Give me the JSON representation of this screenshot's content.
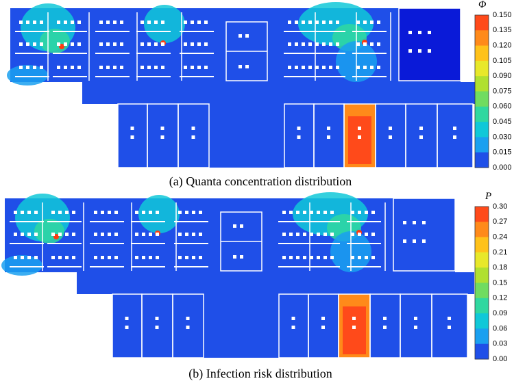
{
  "panels": [
    {
      "caption": "(a) Quanta concentration distribution",
      "colorbar": {
        "title": "Φ",
        "ticks": [
          "0.150",
          "0.135",
          "0.120",
          "0.105",
          "0.090",
          "0.075",
          "0.060",
          "0.045",
          "0.030",
          "0.015",
          "0.000"
        ],
        "colors": [
          "#ff4a1a",
          "#ff8a1a",
          "#ffc21a",
          "#e8e82a",
          "#b0e030",
          "#70dc60",
          "#30d8a0",
          "#10c8d8",
          "#1aa0f0",
          "#1f4fe8"
        ]
      }
    },
    {
      "caption": "(b) Infection risk distribution",
      "colorbar": {
        "title": "P",
        "ticks": [
          "0.30",
          "0.27",
          "0.24",
          "0.21",
          "0.18",
          "0.15",
          "0.12",
          "0.09",
          "0.06",
          "0.03",
          "0.00"
        ],
        "colors": [
          "#ff4a1a",
          "#ff8a1a",
          "#ffc21a",
          "#e8e82a",
          "#b0e030",
          "#70dc60",
          "#30d8a0",
          "#10c8d8",
          "#1aa0f0",
          "#1f4fe8"
        ]
      }
    }
  ]
}
